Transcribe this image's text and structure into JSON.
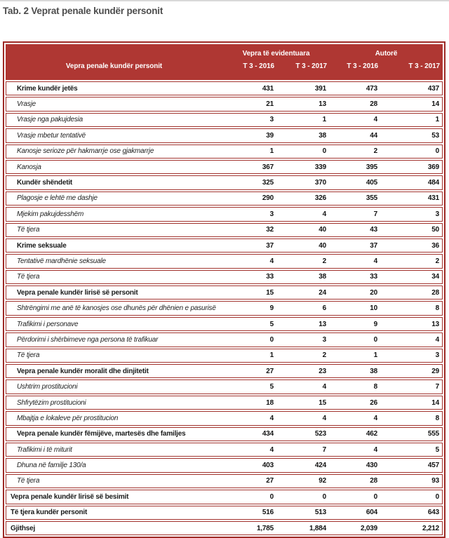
{
  "title": "Tab. 2 Veprat penale kundër personit",
  "colors": {
    "header_bg": "#AF3733",
    "outer_border": "#9E2B27",
    "row_border": "#A1322D",
    "title_text": "#4D4D4D"
  },
  "table": {
    "row_header_label": "Vepra penale kundër personit",
    "group_headers": [
      "Vepra të evidentuara",
      "Autorë"
    ],
    "period_headers": [
      "T 3 - 2016",
      "T 3 - 2017",
      "T 3 - 2016",
      "T 3 - 2017"
    ],
    "rows": [
      {
        "label": "Krime kundër jetës",
        "style": "category",
        "values": [
          "431",
          "391",
          "473",
          "437"
        ]
      },
      {
        "label": "Vrasje",
        "style": "sub",
        "values": [
          "21",
          "13",
          "28",
          "14"
        ]
      },
      {
        "label": "Vrasje nga pakujdesia",
        "style": "sub",
        "values": [
          "3",
          "1",
          "4",
          "1"
        ]
      },
      {
        "label": "Vrasje mbetur tentativë",
        "style": "sub",
        "values": [
          "39",
          "38",
          "44",
          "53"
        ]
      },
      {
        "label": "Kanosje serioze për hakmarrje ose gjakmarrje",
        "style": "sub",
        "values": [
          "1",
          "0",
          "2",
          "0"
        ]
      },
      {
        "label": "Kanosja",
        "style": "sub",
        "values": [
          "367",
          "339",
          "395",
          "369"
        ]
      },
      {
        "label": "Kundër shëndetit",
        "style": "category",
        "values": [
          "325",
          "370",
          "405",
          "484"
        ]
      },
      {
        "label": "Plagosje e lehtë me dashje",
        "style": "sub",
        "values": [
          "290",
          "326",
          "355",
          "431"
        ]
      },
      {
        "label": "Mjekim pakujdesshëm",
        "style": "sub",
        "values": [
          "3",
          "4",
          "7",
          "3"
        ]
      },
      {
        "label": "Të tjera",
        "style": "sub",
        "values": [
          "32",
          "40",
          "43",
          "50"
        ]
      },
      {
        "label": "Krime seksuale",
        "style": "category",
        "values": [
          "37",
          "40",
          "37",
          "36"
        ]
      },
      {
        "label": "Tentativë mardhënie seksuale",
        "style": "sub",
        "values": [
          "4",
          "2",
          "4",
          "2"
        ]
      },
      {
        "label": "Të tjera",
        "style": "sub",
        "values": [
          "33",
          "38",
          "33",
          "34"
        ]
      },
      {
        "label": "Vepra penale kundër lirisë së personit",
        "style": "category",
        "values": [
          "15",
          "24",
          "20",
          "28"
        ]
      },
      {
        "label": "Shtrëngimi me anë të kanosjes ose dhunës për dhënien e pasurisë",
        "style": "sub",
        "values": [
          "9",
          "6",
          "10",
          "8"
        ]
      },
      {
        "label": "Trafikimi i personave",
        "style": "sub",
        "values": [
          "5",
          "13",
          "9",
          "13"
        ]
      },
      {
        "label": "Përdorimi i shërbimeve nga persona të trafikuar",
        "style": "sub",
        "values": [
          "0",
          "3",
          "0",
          "4"
        ]
      },
      {
        "label": "Të tjera",
        "style": "sub",
        "values": [
          "1",
          "2",
          "1",
          "3"
        ]
      },
      {
        "label": "Vepra penale kundër moralit dhe dinjitetit",
        "style": "category",
        "values": [
          "27",
          "23",
          "38",
          "29"
        ]
      },
      {
        "label": "Ushtrim prostitucioni",
        "style": "sub",
        "values": [
          "5",
          "4",
          "8",
          "7"
        ]
      },
      {
        "label": "Shfrytëzim prostitucioni",
        "style": "sub",
        "values": [
          "18",
          "15",
          "26",
          "14"
        ]
      },
      {
        "label": "Mbajtja e lokaleve për prostitucion",
        "style": "sub",
        "values": [
          "4",
          "4",
          "4",
          "8"
        ]
      },
      {
        "label": "Vepra penale kundër fëmijëve, martesës dhe familjes",
        "style": "category",
        "values": [
          "434",
          "523",
          "462",
          "555"
        ]
      },
      {
        "label": "Trafikimi i të miturit",
        "style": "sub",
        "values": [
          "4",
          "7",
          "4",
          "5"
        ]
      },
      {
        "label": "Dhuna në familje 130/a",
        "style": "sub",
        "values": [
          "403",
          "424",
          "430",
          "457"
        ]
      },
      {
        "label": "Të tjera",
        "style": "sub",
        "values": [
          "27",
          "92",
          "28",
          "93"
        ]
      },
      {
        "label": "Vepra penale kundër lirisë së besimit",
        "style": "top",
        "values": [
          "0",
          "0",
          "0",
          "0"
        ]
      },
      {
        "label": "Të tjera kundër personit",
        "style": "top",
        "values": [
          "516",
          "513",
          "604",
          "643"
        ]
      },
      {
        "label": "Gjithsej",
        "style": "total",
        "values": [
          "1,785",
          "1,884",
          "2,039",
          "2,212"
        ]
      }
    ]
  }
}
